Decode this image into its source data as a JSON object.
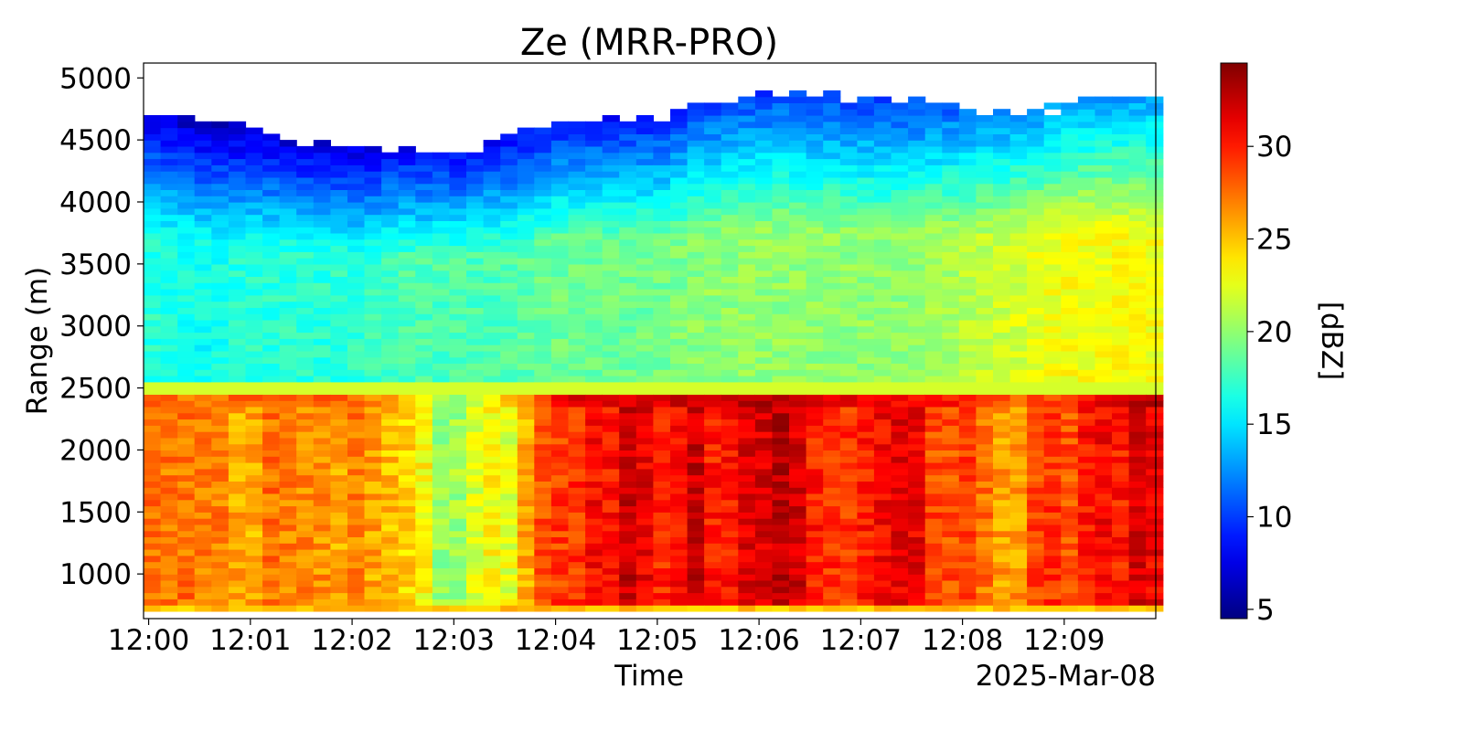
{
  "chart_data": {
    "type": "heatmap",
    "title": "Ze (MRR-PRO)",
    "xlabel": "Time",
    "ylabel": "Range (m)",
    "date_label": "2025-Mar-08",
    "x_ticks": [
      "12:00",
      "12:01",
      "12:02",
      "12:03",
      "12:04",
      "12:05",
      "12:06",
      "12:07",
      "12:08",
      "12:09"
    ],
    "x_tick_minutes": [
      0,
      1,
      2,
      3,
      4,
      5,
      6,
      7,
      8,
      9
    ],
    "xlim_minutes": [
      -0.05,
      9.9
    ],
    "y_ticks": [
      1000,
      1500,
      2000,
      2500,
      3000,
      3500,
      4000,
      4500,
      5000
    ],
    "ylim": [
      640,
      5120
    ],
    "colorbar": {
      "label": "[dBZ]",
      "ticks": [
        5,
        10,
        15,
        20,
        25,
        30
      ],
      "range": [
        4.5,
        34.5
      ],
      "colormap": "jet"
    },
    "time_bin_minutes": 0.167,
    "range_bin_m": 50,
    "range_start_m": 700,
    "bright_band_top_m": 2450,
    "profiles": [
      {
        "t": 0.0,
        "below_bb": 27,
        "above_bb": 17,
        "echo_top": 4700
      },
      {
        "t": 0.5,
        "below_bb": 26,
        "above_bb": 16,
        "echo_top": 4650
      },
      {
        "t": 1.0,
        "below_bb": 27,
        "above_bb": 17,
        "echo_top": 4550
      },
      {
        "t": 1.5,
        "below_bb": 27,
        "above_bb": 17,
        "echo_top": 4450
      },
      {
        "t": 2.0,
        "below_bb": 27,
        "above_bb": 17,
        "echo_top": 4420
      },
      {
        "t": 2.5,
        "below_bb": 24,
        "above_bb": 18,
        "echo_top": 4400
      },
      {
        "t": 3.0,
        "below_bb": 19,
        "above_bb": 18,
        "echo_top": 4380
      },
      {
        "t": 3.5,
        "below_bb": 23,
        "above_bb": 18,
        "echo_top": 4500
      },
      {
        "t": 4.0,
        "below_bb": 30,
        "above_bb": 19,
        "echo_top": 4600
      },
      {
        "t": 4.5,
        "below_bb": 31,
        "above_bb": 19,
        "echo_top": 4620
      },
      {
        "t": 5.0,
        "below_bb": 31,
        "above_bb": 19,
        "echo_top": 4650
      },
      {
        "t": 5.5,
        "below_bb": 31,
        "above_bb": 20,
        "echo_top": 4750
      },
      {
        "t": 6.0,
        "below_bb": 32,
        "above_bb": 20,
        "echo_top": 4850
      },
      {
        "t": 6.5,
        "below_bb": 31,
        "above_bb": 20,
        "echo_top": 4850
      },
      {
        "t": 7.0,
        "below_bb": 30,
        "above_bb": 20,
        "echo_top": 4800
      },
      {
        "t": 7.5,
        "below_bb": 30,
        "above_bb": 20,
        "echo_top": 4800
      },
      {
        "t": 8.0,
        "below_bb": 29,
        "above_bb": 21,
        "echo_top": 4750
      },
      {
        "t": 8.5,
        "below_bb": 27,
        "above_bb": 22,
        "echo_top": 4700
      },
      {
        "t": 9.0,
        "below_bb": 28,
        "above_bb": 23,
        "echo_top": 4750
      },
      {
        "t": 9.5,
        "below_bb": 31,
        "above_bb": 23,
        "echo_top": 4800
      },
      {
        "t": 9.9,
        "below_bb": 32,
        "above_bb": 23,
        "echo_top": 4800
      }
    ]
  }
}
